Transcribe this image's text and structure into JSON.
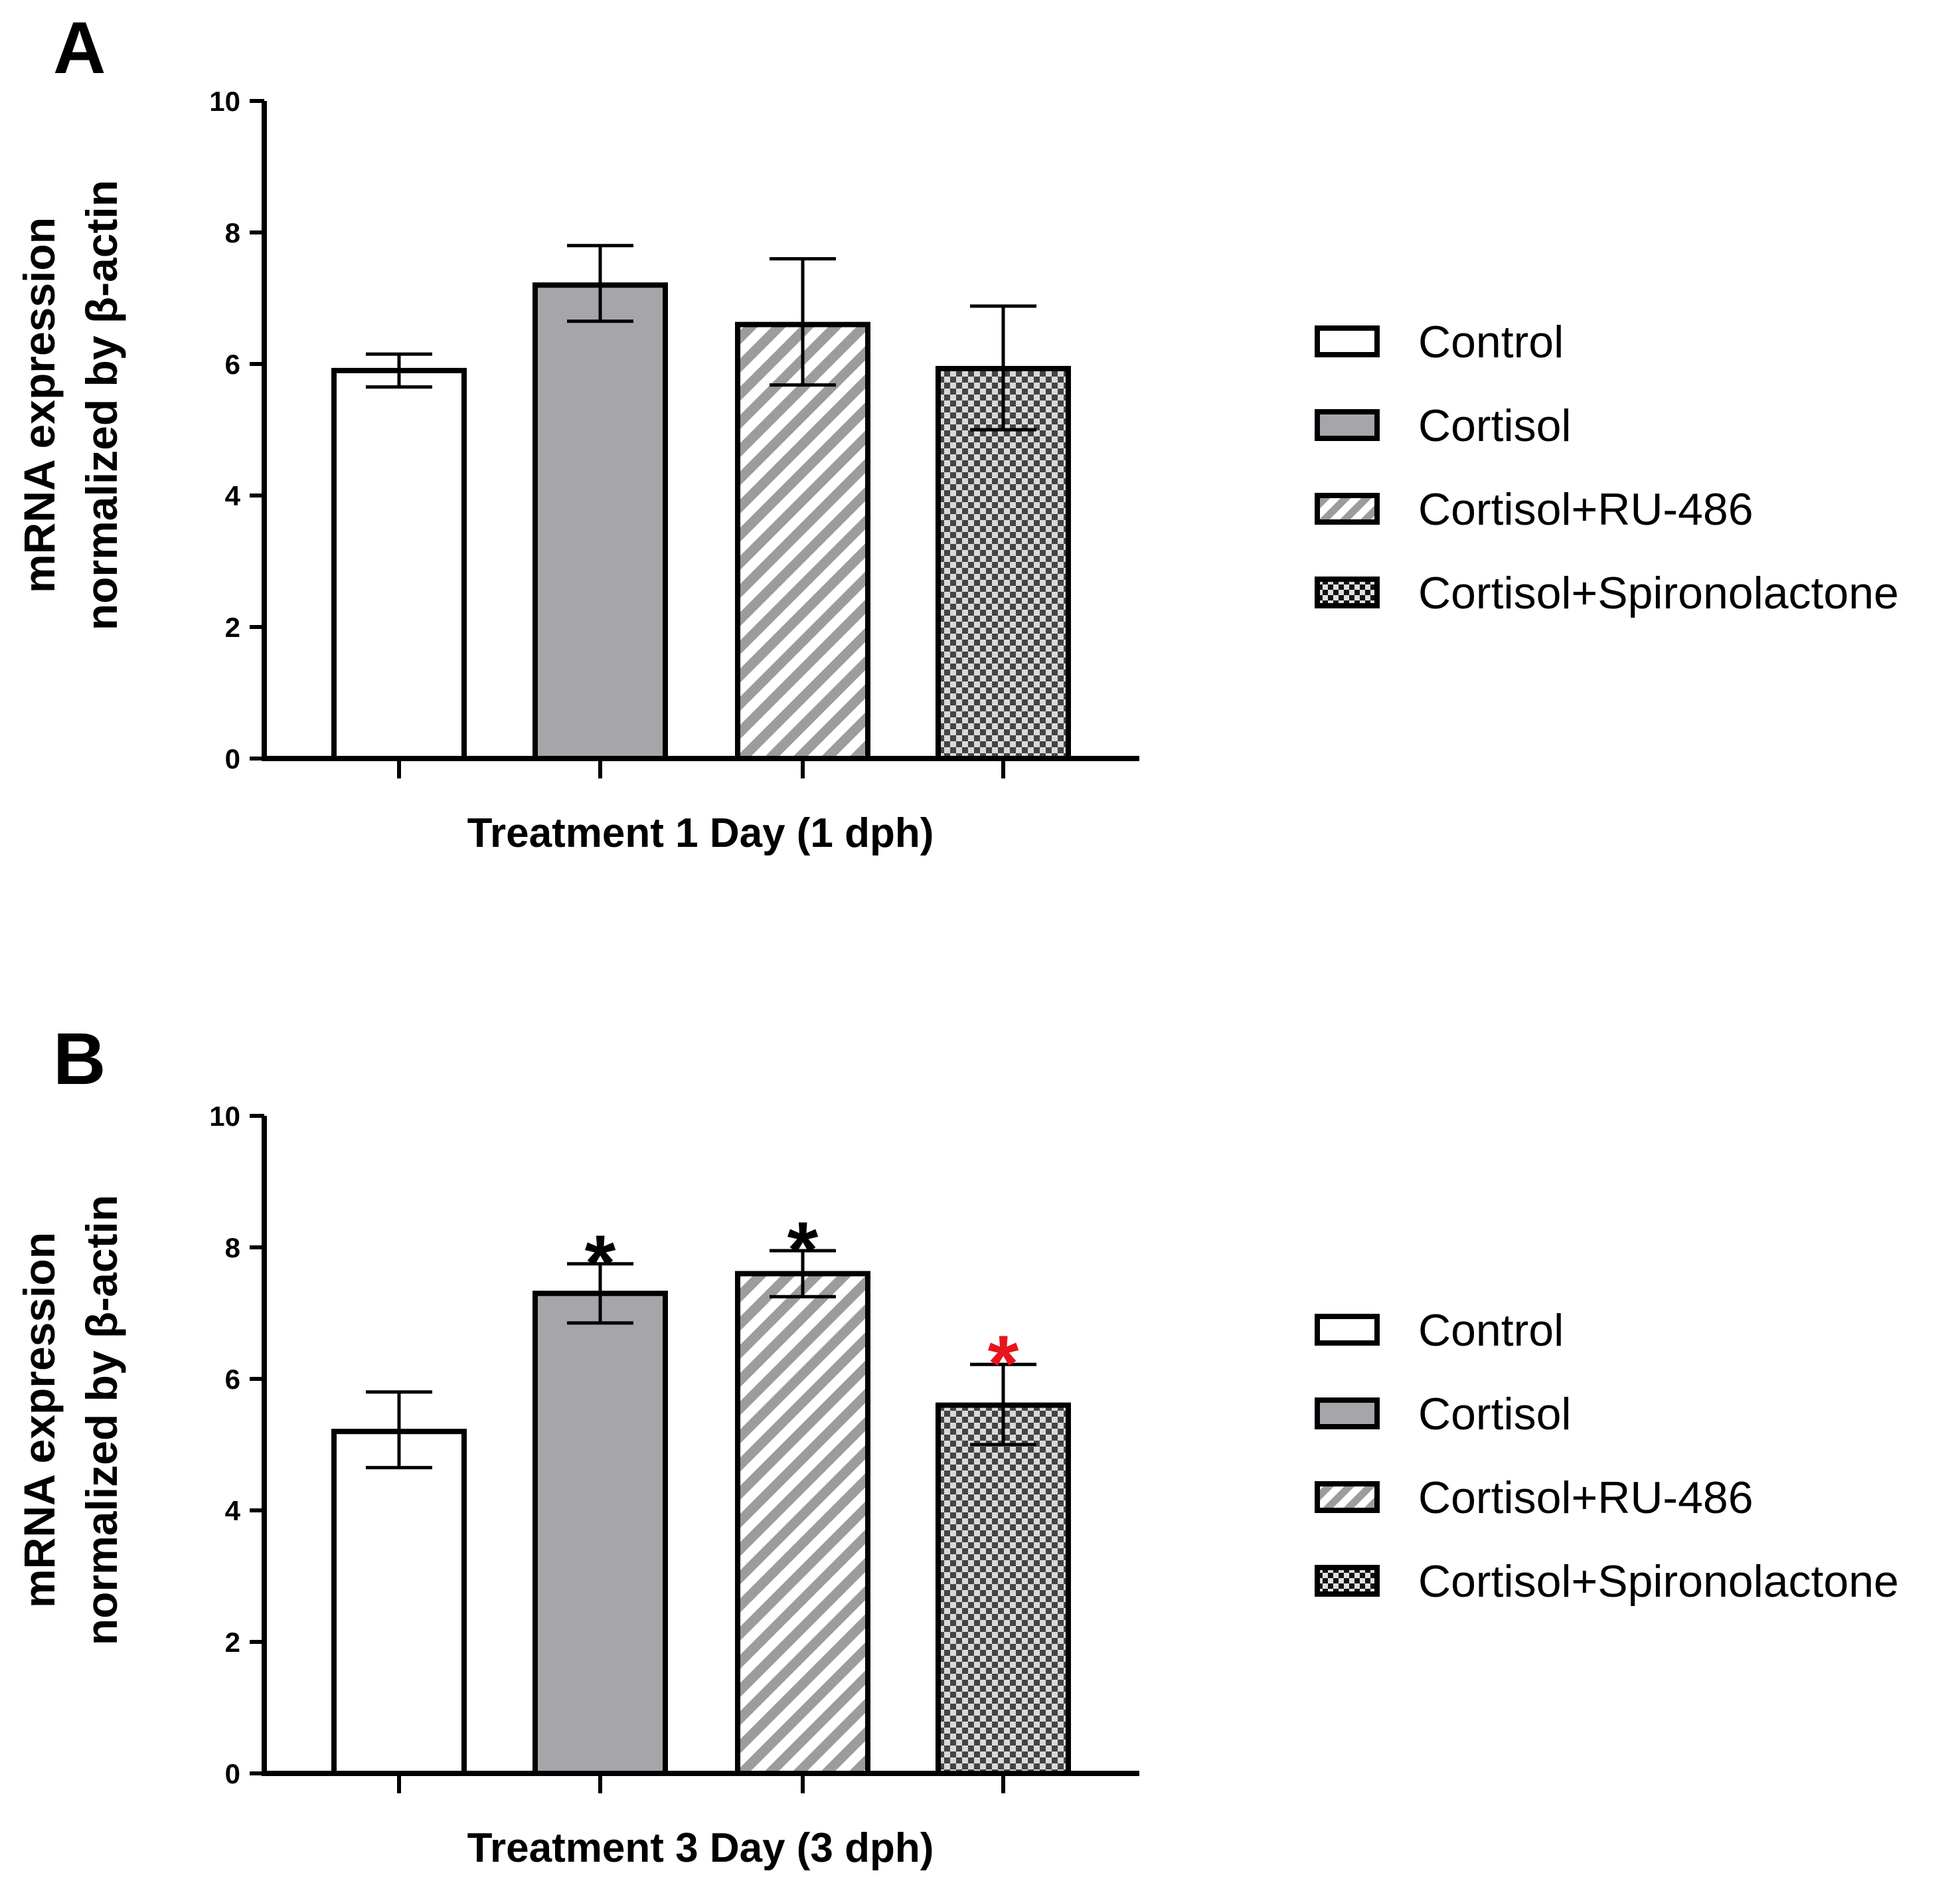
{
  "chart_data": [
    {
      "type": "bar",
      "panel": "A",
      "title": "",
      "xlabel": "Treatment 1 Day (1 dph)",
      "ylabel_lines": [
        "mRNA expression",
        "normalized by β-actin"
      ],
      "ylim": [
        0,
        10
      ],
      "yticks": [
        0,
        2,
        4,
        6,
        8,
        10
      ],
      "categories": [
        "Control",
        "Cortisol",
        "Cortisol+RU-486",
        "Cortisol+Spironolactone"
      ],
      "values": [
        5.9,
        7.2,
        6.6,
        5.93
      ],
      "error_upper": [
        6.15,
        7.8,
        7.6,
        6.88
      ],
      "error_lower": [
        5.65,
        6.65,
        5.68,
        5.0
      ],
      "significance": [
        "",
        "",
        "",
        ""
      ],
      "significance_colors": [
        "#000000",
        "#000000",
        "#000000",
        "#000000"
      ],
      "legend": [
        "Control",
        "Cortisol",
        "Cortisol+RU-486",
        "Cortisol+Spironolactone"
      ],
      "legend_position": "right",
      "grid": false
    },
    {
      "type": "bar",
      "panel": "B",
      "title": "",
      "xlabel": "Treatment 3 Day (3 dph)",
      "ylabel_lines": [
        "mRNA expression",
        "normalized by β-actin"
      ],
      "ylim": [
        0,
        10
      ],
      "yticks": [
        0,
        2,
        4,
        6,
        8,
        10
      ],
      "categories": [
        "Control",
        "Cortisol",
        "Cortisol+RU-486",
        "Cortisol+Spironolactone"
      ],
      "values": [
        5.2,
        7.3,
        7.6,
        5.6
      ],
      "error_upper": [
        5.8,
        7.75,
        7.95,
        6.22
      ],
      "error_lower": [
        4.65,
        6.85,
        7.25,
        5.0
      ],
      "significance": [
        "",
        "*",
        "*",
        "*"
      ],
      "significance_colors": [
        "#000000",
        "#000000",
        "#000000",
        "#e8141b"
      ],
      "legend": [
        "Control",
        "Cortisol",
        "Cortisol+RU-486",
        "Cortisol+Spironolactone"
      ],
      "legend_position": "right",
      "grid": false
    }
  ],
  "colors": {
    "control_fill": "#ffffff",
    "cortisol_fill": "#a6a6aa",
    "stroke": "#000000",
    "hatch_gray": "#9c9c9c",
    "checker_dark": "#444444",
    "checker_light": "#d9d9d9"
  }
}
